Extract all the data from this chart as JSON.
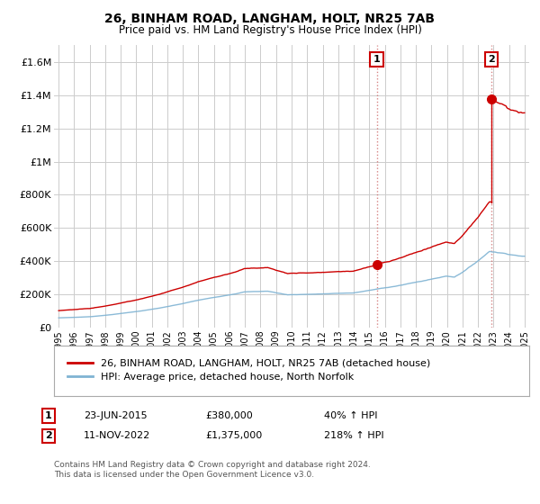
{
  "title": "26, BINHAM ROAD, LANGHAM, HOLT, NR25 7AB",
  "subtitle": "Price paid vs. HM Land Registry's House Price Index (HPI)",
  "ylabel_ticks": [
    "£0",
    "£200K",
    "£400K",
    "£600K",
    "£800K",
    "£1M",
    "£1.2M",
    "£1.4M",
    "£1.6M"
  ],
  "ylim": [
    0,
    1700000
  ],
  "ytick_values": [
    0,
    200000,
    400000,
    600000,
    800000,
    1000000,
    1200000,
    1400000,
    1600000
  ],
  "legend_line1": "26, BINHAM ROAD, LANGHAM, HOLT, NR25 7AB (detached house)",
  "legend_line2": "HPI: Average price, detached house, North Norfolk",
  "annotation1_label": "1",
  "annotation1_date": "23-JUN-2015",
  "annotation1_price": "£380,000",
  "annotation1_hpi": "40% ↑ HPI",
  "annotation2_label": "2",
  "annotation2_date": "11-NOV-2022",
  "annotation2_price": "£1,375,000",
  "annotation2_hpi": "218% ↑ HPI",
  "footer": "Contains HM Land Registry data © Crown copyright and database right 2024.\nThis data is licensed under the Open Government Licence v3.0.",
  "property_color": "#cc0000",
  "hpi_color": "#7fb3d3",
  "sale1_year": 2015.48,
  "sale1_price": 380000,
  "sale2_year": 2022.87,
  "sale2_price": 1375000,
  "background_color": "#ffffff",
  "grid_color": "#cccccc",
  "xlim_left": 1994.7,
  "xlim_right": 2025.3
}
